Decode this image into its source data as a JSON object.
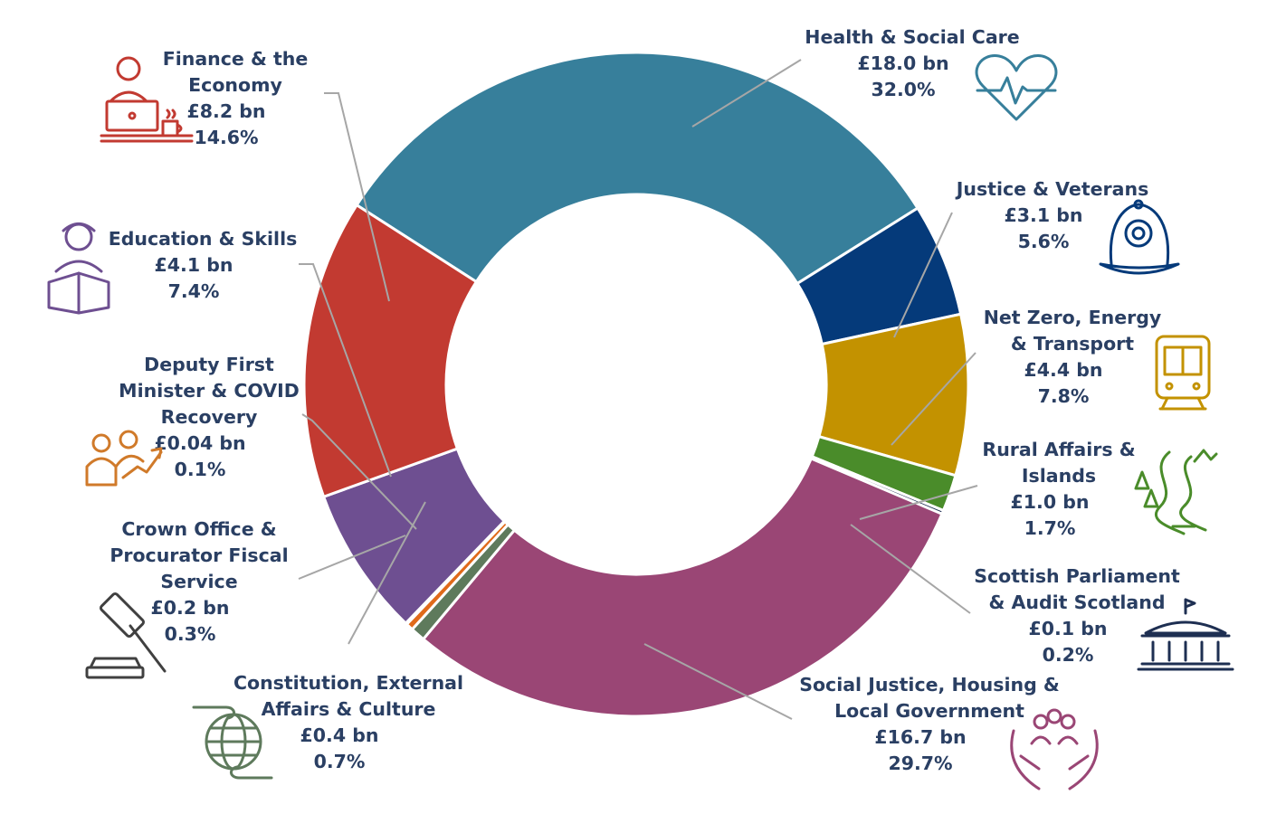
{
  "chart_data": {
    "type": "pie",
    "variant": "donut",
    "title": "",
    "legend": "none",
    "slices": [
      {
        "name": "Health & Social Care",
        "value_label": "£18.0 bn",
        "percent_label": "32.0%",
        "value": 18.0,
        "percent": 32.0,
        "color": "#377f9b",
        "icon": "heart-pulse-icon"
      },
      {
        "name": "Justice & Veterans",
        "value_label": "£3.1 bn",
        "percent_label": "5.6%",
        "value": 3.1,
        "percent": 5.6,
        "color": "#053a7a",
        "icon": "police-helmet-icon"
      },
      {
        "name": "Net Zero, Energy & Transport",
        "value_label": "£4.4 bn",
        "percent_label": "7.8%",
        "value": 4.4,
        "percent": 7.8,
        "color": "#c39200",
        "icon": "train-icon"
      },
      {
        "name": "Rural Affairs & Islands",
        "value_label": "£1.0 bn",
        "percent_label": "1.7%",
        "value": 1.0,
        "percent": 1.7,
        "color": "#4a8c2a",
        "icon": "river-landscape-icon"
      },
      {
        "name": "Scottish Parliament & Audit Scotland",
        "value_label": "£0.1 bn",
        "percent_label": "0.2%",
        "value": 0.1,
        "percent": 0.2,
        "color": "#1e2f52",
        "icon": "parliament-building-icon"
      },
      {
        "name": "Social Justice, Housing & Local Government",
        "value_label": "£16.7 bn",
        "percent_label": "29.7%",
        "value": 16.7,
        "percent": 29.7,
        "color": "#9a4675",
        "icon": "hands-community-icon"
      },
      {
        "name": "Constitution, External Affairs & Culture",
        "value_label": "£0.4 bn",
        "percent_label": "0.7%",
        "value": 0.4,
        "percent": 0.7,
        "color": "#5e7a5c",
        "icon": "globe-hands-icon"
      },
      {
        "name": "Crown Office & Procurator Fiscal Service",
        "value_label": "£0.2 bn",
        "percent_label": "0.3%",
        "value": 0.2,
        "percent": 0.3,
        "color": "#e06a1a",
        "icon": "gavel-icon"
      },
      {
        "name": "Deputy First Minister & COVID Recovery",
        "value_label": "£0.04 bn",
        "percent_label": "0.1%",
        "value": 0.04,
        "percent": 0.1,
        "color": "#d07a2a",
        "icon": "people-growth-icon"
      },
      {
        "name": "Education & Skills",
        "value_label": "£4.1 bn",
        "percent_label": "7.4%",
        "value": 4.1,
        "percent": 7.4,
        "color": "#6e4f91",
        "icon": "student-reading-icon"
      },
      {
        "name": "Finance & the Economy",
        "value_label": "£8.2 bn",
        "percent_label": "14.6%",
        "value": 8.2,
        "percent": 14.6,
        "color": "#c23a31",
        "icon": "laptop-worker-icon"
      }
    ]
  }
}
